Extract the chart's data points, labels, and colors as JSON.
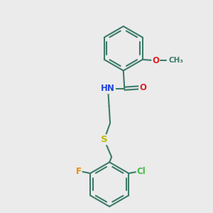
{
  "background_color": "#ebebeb",
  "bond_color": "#3d7a6a",
  "bond_width": 1.5,
  "atom_colors": {
    "O": "#dd2222",
    "N": "#2244dd",
    "S": "#bbbb00",
    "Cl": "#44bb44",
    "F": "#ee8800",
    "C": "#3d7a6a"
  },
  "font_size": 8.5,
  "fig_width": 3.0,
  "fig_height": 3.0,
  "xlim": [
    0,
    10
  ],
  "ylim": [
    0,
    10
  ]
}
